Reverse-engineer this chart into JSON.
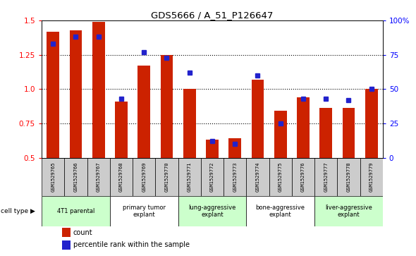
{
  "title": "GDS5666 / A_51_P126647",
  "samples": [
    "GSM1529765",
    "GSM1529766",
    "GSM1529767",
    "GSM1529768",
    "GSM1529769",
    "GSM1529770",
    "GSM1529771",
    "GSM1529772",
    "GSM1529773",
    "GSM1529774",
    "GSM1529775",
    "GSM1529776",
    "GSM1529777",
    "GSM1529778",
    "GSM1529779"
  ],
  "count_values": [
    1.42,
    1.43,
    1.49,
    0.91,
    1.17,
    1.25,
    1.0,
    0.63,
    0.64,
    1.07,
    0.84,
    0.94,
    0.86,
    0.86,
    1.0
  ],
  "percentile_values": [
    83,
    88,
    88,
    43,
    77,
    73,
    62,
    12,
    10,
    60,
    25,
    43,
    43,
    42,
    50
  ],
  "cell_types": [
    {
      "label": "4T1 parental",
      "start": 0,
      "end": 3,
      "color": "#ccffcc"
    },
    {
      "label": "primary tumor\nexplant",
      "start": 3,
      "end": 6,
      "color": "#ffffff"
    },
    {
      "label": "lung-aggressive\nexplant",
      "start": 6,
      "end": 9,
      "color": "#ccffcc"
    },
    {
      "label": "bone-aggressive\nexplant",
      "start": 9,
      "end": 12,
      "color": "#ffffff"
    },
    {
      "label": "liver-aggressive\nexplant",
      "start": 12,
      "end": 15,
      "color": "#ccffcc"
    }
  ],
  "bar_color": "#cc2200",
  "dot_color": "#2222cc",
  "ylim_left": [
    0.5,
    1.5
  ],
  "ylim_right": [
    0,
    100
  ],
  "yticks_left": [
    0.5,
    0.75,
    1.0,
    1.25,
    1.5
  ],
  "yticks_right": [
    0,
    25,
    50,
    75,
    100
  ],
  "ytick_labels_right": [
    "0",
    "25",
    "50",
    "75",
    "100%"
  ],
  "grid_dotted_values": [
    0.75,
    1.0,
    1.25
  ],
  "bar_width": 0.55,
  "background_color": "#ffffff",
  "legend_count_label": "count",
  "legend_pct_label": "percentile rank within the sample",
  "cell_type_label": "cell type",
  "header_row_color": "#cccccc",
  "figsize": [
    5.9,
    3.63
  ],
  "dpi": 100
}
